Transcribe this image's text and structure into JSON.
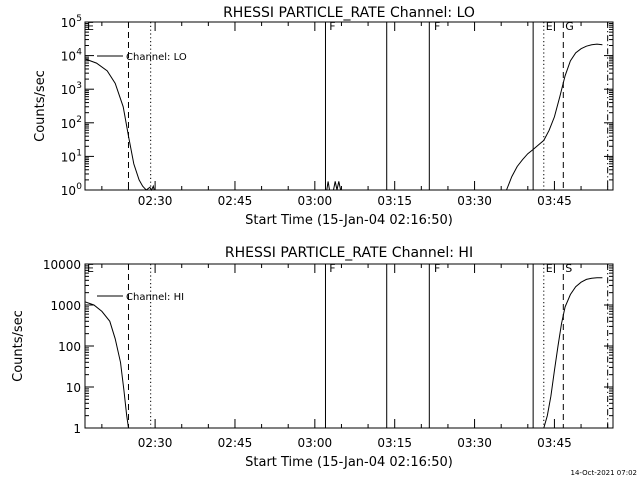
{
  "footer_timestamp": "14-Oct-2021 07:02",
  "chart_data": [
    {
      "type": "line",
      "title": "RHESSI PARTICLE_RATE Channel: LO",
      "xlabel": "Start Time (15-Jan-04 02:16:50)",
      "ylabel": "Counts/sec",
      "yscale": "log",
      "ylim": [
        1,
        100000
      ],
      "yticks": [
        {
          "value": 1,
          "label": "10",
          "exp": "0"
        },
        {
          "value": 10,
          "label": "10",
          "exp": "1"
        },
        {
          "value": 100,
          "label": "10",
          "exp": "2"
        },
        {
          "value": 1000,
          "label": "10",
          "exp": "3"
        },
        {
          "value": 10000,
          "label": "10",
          "exp": "4"
        },
        {
          "value": 100000,
          "label": "10",
          "exp": "5"
        }
      ],
      "xlim": [
        "02:16:50",
        "03:56:00"
      ],
      "xticks": [
        "02:30",
        "02:45",
        "03:00",
        "03:15",
        "03:30",
        "03:45"
      ],
      "legend": {
        "position": "top-left",
        "label": "Channel: LO"
      },
      "series": [
        {
          "name": "Channel: LO",
          "x": [
            "02:16:50",
            "02:19:00",
            "02:21:00",
            "02:22:30",
            "02:24:00",
            "02:25:00",
            "02:26:00",
            "02:27:00",
            "02:27:40",
            "02:28:20",
            "02:29:00",
            "02:29:20",
            "02:29:40",
            "02:29:50",
            "03:20:00",
            "03:02:15",
            "03:02:30",
            "03:02:45",
            "03:03:30",
            "03:03:50",
            "03:04:10",
            "03:04:30",
            "03:04:50",
            "03:36:00",
            "03:37:00",
            "03:38:00",
            "03:39:00",
            "03:40:00",
            "03:41:00",
            "03:42:00",
            "03:43:00",
            "03:44:00",
            "03:45:00",
            "03:46:00",
            "03:47:00",
            "03:48:00",
            "03:49:00",
            "03:50:00",
            "03:51:00",
            "03:52:00",
            "03:53:00",
            "03:54:00"
          ],
          "y": [
            8000,
            6000,
            3500,
            1500,
            300,
            40,
            6,
            2,
            1.3,
            1,
            1.2,
            1,
            1.3,
            1,
            1,
            1,
            1.8,
            1,
            1,
            1.8,
            1,
            1.8,
            1,
            1,
            2.5,
            5,
            8,
            12,
            16,
            22,
            30,
            60,
            150,
            600,
            2500,
            7000,
            12000,
            16000,
            19000,
            21000,
            22000,
            21000
          ],
          "segments": [
            [
              0,
              13
            ],
            [
              15,
              22
            ],
            [
              23,
              41
            ]
          ]
        }
      ],
      "annotations": [
        {
          "text": "E",
          "x": "02:16:50"
        },
        {
          "text": "F",
          "x": "03:02:20"
        },
        {
          "text": "F",
          "x": "03:22:00"
        },
        {
          "text": "E",
          "x": "03:43:00"
        },
        {
          "text": "G",
          "x": "03:46:40"
        }
      ],
      "vlines": [
        {
          "x": "02:25:00",
          "style": "dashed"
        },
        {
          "x": "02:29:10",
          "style": "dotted"
        },
        {
          "x": "03:02:00",
          "style": "solid"
        },
        {
          "x": "03:13:30",
          "style": "solid"
        },
        {
          "x": "03:21:30",
          "style": "solid"
        },
        {
          "x": "03:41:00",
          "style": "solid"
        },
        {
          "x": "03:43:00",
          "style": "dotted"
        },
        {
          "x": "03:46:40",
          "style": "dashed"
        },
        {
          "x": "03:55:00",
          "style": "dashdot"
        }
      ],
      "grid": false
    },
    {
      "type": "line",
      "title": "RHESSI PARTICLE_RATE Channel: HI",
      "xlabel": "Start Time (15-Jan-04 02:16:50)",
      "ylabel": "Counts/sec",
      "yscale": "log",
      "ylim": [
        1,
        10000
      ],
      "yticks": [
        {
          "value": 1,
          "label": "1",
          "exp": ""
        },
        {
          "value": 10,
          "label": "10",
          "exp": ""
        },
        {
          "value": 100,
          "label": "100",
          "exp": ""
        },
        {
          "value": 1000,
          "label": "1000",
          "exp": ""
        },
        {
          "value": 10000,
          "label": "10000",
          "exp": ""
        }
      ],
      "xlim": [
        "02:16:50",
        "03:56:00"
      ],
      "xticks": [
        "02:30",
        "02:45",
        "03:00",
        "03:15",
        "03:30",
        "03:45"
      ],
      "legend": {
        "position": "top-left",
        "label": "Channel: HI"
      },
      "series": [
        {
          "name": "Channel: HI",
          "x": [
            "02:16:50",
            "02:18:30",
            "02:20:00",
            "02:21:30",
            "02:22:30",
            "02:23:30",
            "02:24:10",
            "02:24:40",
            "02:25:00",
            "03:43:00",
            "03:43:40",
            "03:44:20",
            "03:45:00",
            "03:45:40",
            "03:46:20",
            "03:47:00",
            "03:48:00",
            "03:49:00",
            "03:50:00",
            "03:51:00",
            "03:52:00",
            "03:53:00",
            "03:54:00"
          ],
          "y": [
            1200,
            1000,
            700,
            400,
            150,
            40,
            8,
            2,
            1,
            1,
            2,
            6,
            25,
            100,
            350,
            900,
            1800,
            2800,
            3600,
            4200,
            4500,
            4600,
            4600
          ],
          "segments": [
            [
              0,
              8
            ],
            [
              9,
              22
            ]
          ]
        }
      ],
      "annotations": [
        {
          "text": "E",
          "x": "02:16:50"
        },
        {
          "text": "F",
          "x": "03:02:20"
        },
        {
          "text": "F",
          "x": "03:22:00"
        },
        {
          "text": "E",
          "x": "03:43:00"
        },
        {
          "text": "S",
          "x": "03:46:40"
        }
      ],
      "vlines": [
        {
          "x": "02:25:00",
          "style": "dashed"
        },
        {
          "x": "02:29:10",
          "style": "dotted"
        },
        {
          "x": "03:02:00",
          "style": "solid"
        },
        {
          "x": "03:13:30",
          "style": "solid"
        },
        {
          "x": "03:21:30",
          "style": "solid"
        },
        {
          "x": "03:41:00",
          "style": "solid"
        },
        {
          "x": "03:43:00",
          "style": "dotted"
        },
        {
          "x": "03:46:40",
          "style": "dashed"
        },
        {
          "x": "03:55:00",
          "style": "dashdot"
        }
      ],
      "grid": false
    }
  ]
}
